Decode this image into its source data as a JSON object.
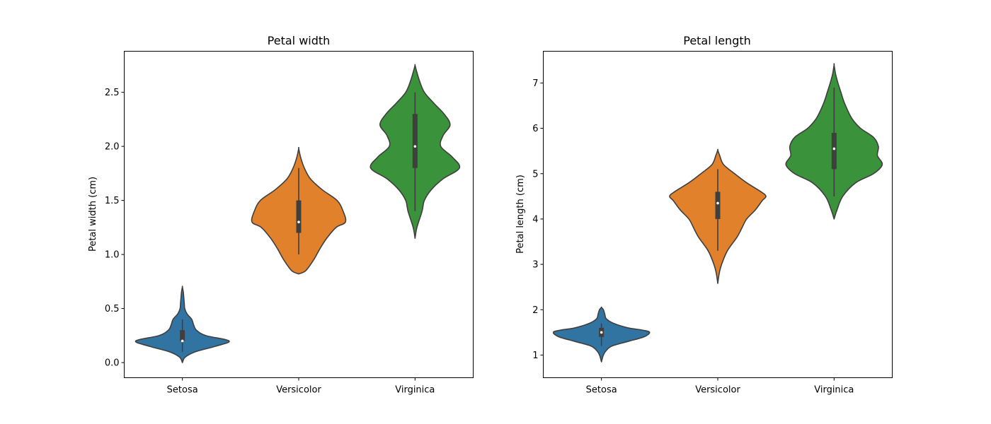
{
  "colors": {
    "setosa": "#3274a1",
    "versicolor": "#e1812c",
    "virginica": "#3a923a",
    "outline": "#3f3f3f",
    "box": "#3f3f3f",
    "median": "#ffffff"
  },
  "chart_data": [
    {
      "type": "violin",
      "title": "Petal width",
      "xlabel": "",
      "ylabel": "Petal width (cm)",
      "categories": [
        "Setosa",
        "Versicolor",
        "Virginica"
      ],
      "ylim": [
        -0.14,
        2.88
      ],
      "yticks": [
        0.0,
        0.5,
        1.0,
        1.5,
        2.0,
        2.5
      ],
      "ytick_labels": [
        "0.0",
        "0.5",
        "1.0",
        "1.5",
        "2.0",
        "2.5"
      ],
      "series": [
        {
          "category": "Setosa",
          "color": "#3274a1",
          "whisker": [
            0.1,
            0.4
          ],
          "q1": 0.2,
          "median": 0.2,
          "q3": 0.3,
          "range": [
            0.0,
            0.7
          ],
          "density": [
            [
              0.0,
              0.0
            ],
            [
              0.05,
              0.06
            ],
            [
              0.1,
              0.28
            ],
            [
              0.15,
              0.7
            ],
            [
              0.2,
              1.0
            ],
            [
              0.25,
              0.5
            ],
            [
              0.3,
              0.3
            ],
            [
              0.35,
              0.24
            ],
            [
              0.4,
              0.2
            ],
            [
              0.45,
              0.1
            ],
            [
              0.5,
              0.05
            ],
            [
              0.55,
              0.04
            ],
            [
              0.6,
              0.03
            ],
            [
              0.65,
              0.02
            ],
            [
              0.7,
              0.0
            ]
          ]
        },
        {
          "category": "Versicolor",
          "color": "#e1812c",
          "whisker": [
            1.0,
            1.8
          ],
          "q1": 1.2,
          "median": 1.3,
          "q3": 1.5,
          "range": [
            0.82,
            1.98
          ],
          "density": [
            [
              0.82,
              0.0
            ],
            [
              0.85,
              0.15
            ],
            [
              0.95,
              0.32
            ],
            [
              1.05,
              0.45
            ],
            [
              1.15,
              0.6
            ],
            [
              1.25,
              0.8
            ],
            [
              1.3,
              1.0
            ],
            [
              1.4,
              0.95
            ],
            [
              1.5,
              0.82
            ],
            [
              1.6,
              0.5
            ],
            [
              1.7,
              0.25
            ],
            [
              1.8,
              0.12
            ],
            [
              1.9,
              0.04
            ],
            [
              1.98,
              0.0
            ]
          ]
        },
        {
          "category": "Virginica",
          "color": "#3a923a",
          "whisker": [
            1.4,
            2.5
          ],
          "q1": 1.8,
          "median": 2.0,
          "q3": 2.3,
          "range": [
            1.15,
            2.75
          ],
          "density": [
            [
              1.15,
              0.0
            ],
            [
              1.25,
              0.04
            ],
            [
              1.4,
              0.15
            ],
            [
              1.5,
              0.2
            ],
            [
              1.6,
              0.35
            ],
            [
              1.7,
              0.6
            ],
            [
              1.8,
              0.95
            ],
            [
              1.9,
              0.8
            ],
            [
              2.0,
              0.55
            ],
            [
              2.1,
              0.6
            ],
            [
              2.2,
              0.75
            ],
            [
              2.3,
              0.62
            ],
            [
              2.4,
              0.4
            ],
            [
              2.5,
              0.2
            ],
            [
              2.6,
              0.1
            ],
            [
              2.7,
              0.03
            ],
            [
              2.75,
              0.0
            ]
          ]
        }
      ]
    },
    {
      "type": "violin",
      "title": "Petal length",
      "xlabel": "",
      "ylabel": "Petal length (cm)",
      "categories": [
        "Setosa",
        "Versicolor",
        "Virginica"
      ],
      "ylim": [
        0.5,
        7.7
      ],
      "yticks": [
        1,
        2,
        3,
        4,
        5,
        6,
        7
      ],
      "ytick_labels": [
        "1",
        "2",
        "3",
        "4",
        "5",
        "6",
        "7"
      ],
      "series": [
        {
          "category": "Setosa",
          "color": "#3274a1",
          "whisker": [
            1.2,
            1.7
          ],
          "q1": 1.4,
          "median": 1.5,
          "q3": 1.6,
          "range": [
            0.85,
            2.05
          ],
          "density": [
            [
              0.85,
              0.0
            ],
            [
              1.0,
              0.04
            ],
            [
              1.1,
              0.1
            ],
            [
              1.2,
              0.22
            ],
            [
              1.3,
              0.55
            ],
            [
              1.4,
              0.88
            ],
            [
              1.5,
              1.0
            ],
            [
              1.55,
              0.85
            ],
            [
              1.6,
              0.55
            ],
            [
              1.7,
              0.25
            ],
            [
              1.8,
              0.1
            ],
            [
              1.9,
              0.07
            ],
            [
              2.0,
              0.04
            ],
            [
              2.05,
              0.0
            ]
          ]
        },
        {
          "category": "Versicolor",
          "color": "#e1812c",
          "whisker": [
            3.3,
            5.1
          ],
          "q1": 4.0,
          "median": 4.35,
          "q3": 4.6,
          "range": [
            2.58,
            5.52
          ],
          "density": [
            [
              2.58,
              0.0
            ],
            [
              2.8,
              0.03
            ],
            [
              3.0,
              0.08
            ],
            [
              3.3,
              0.2
            ],
            [
              3.6,
              0.4
            ],
            [
              3.8,
              0.5
            ],
            [
              4.0,
              0.6
            ],
            [
              4.2,
              0.78
            ],
            [
              4.4,
              0.92
            ],
            [
              4.5,
              1.0
            ],
            [
              4.6,
              0.9
            ],
            [
              4.8,
              0.6
            ],
            [
              5.0,
              0.35
            ],
            [
              5.2,
              0.12
            ],
            [
              5.4,
              0.04
            ],
            [
              5.52,
              0.0
            ]
          ]
        },
        {
          "category": "Virginica",
          "color": "#3a923a",
          "whisker": [
            4.5,
            6.9
          ],
          "q1": 5.1,
          "median": 5.55,
          "q3": 5.9,
          "range": [
            4.0,
            7.4
          ],
          "density": [
            [
              4.0,
              0.0
            ],
            [
              4.2,
              0.06
            ],
            [
              4.5,
              0.18
            ],
            [
              4.8,
              0.45
            ],
            [
              5.0,
              0.82
            ],
            [
              5.2,
              1.0
            ],
            [
              5.4,
              0.9
            ],
            [
              5.6,
              0.92
            ],
            [
              5.8,
              0.82
            ],
            [
              6.0,
              0.55
            ],
            [
              6.2,
              0.38
            ],
            [
              6.4,
              0.28
            ],
            [
              6.6,
              0.2
            ],
            [
              6.8,
              0.14
            ],
            [
              7.0,
              0.08
            ],
            [
              7.2,
              0.03
            ],
            [
              7.4,
              0.0
            ]
          ]
        }
      ]
    }
  ]
}
